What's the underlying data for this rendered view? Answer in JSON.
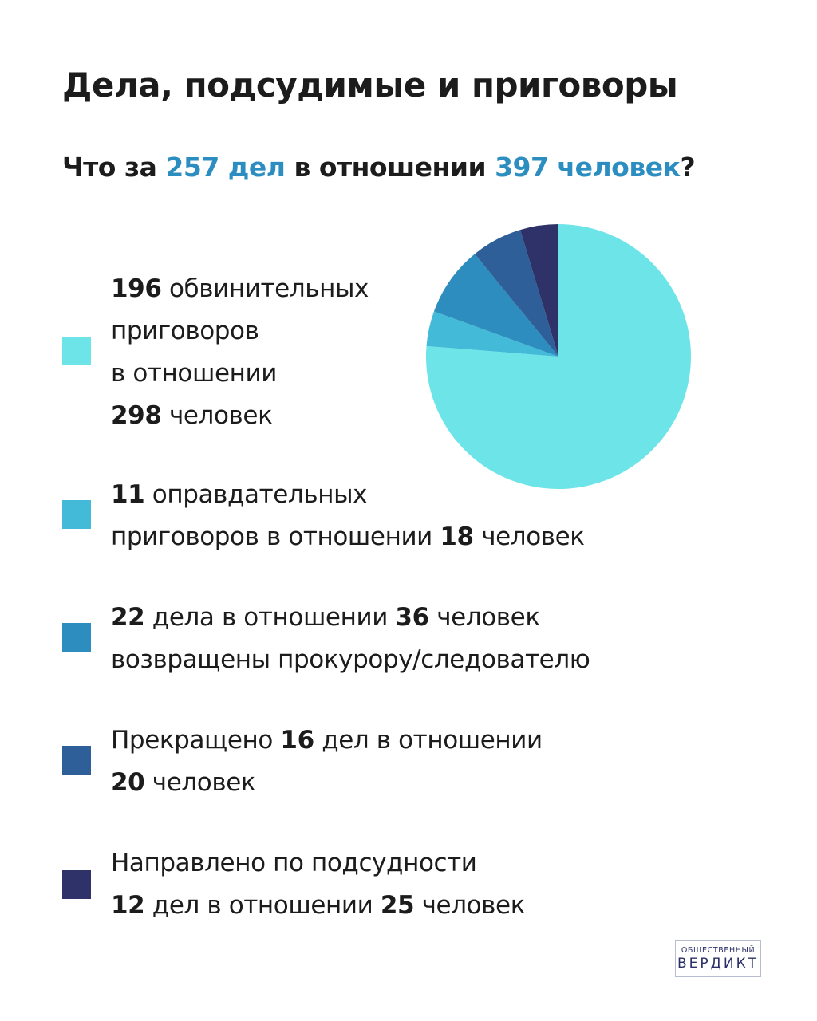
{
  "title": "Дела, подсудимые и приговоры",
  "subtitle": {
    "prefix": "Что за ",
    "cases": "257 дел",
    "middle": " в отношении ",
    "people": "397 человек",
    "suffix": "?"
  },
  "chart_data": {
    "type": "pie",
    "slices": [
      {
        "label": "обвинительных приговоров",
        "value": 196,
        "color": "#6ce4e8"
      },
      {
        "label": "оправдательных приговоров",
        "value": 11,
        "color": "#42bad8"
      },
      {
        "label": "возвращены прокурору/следователю",
        "value": 22,
        "color": "#2c8dbe"
      },
      {
        "label": "Прекращено",
        "value": 16,
        "color": "#2e5f98"
      },
      {
        "label": "Направлено по подсудности",
        "value": 12,
        "color": "#2f3268"
      }
    ]
  },
  "legend": [
    {
      "lines": [
        [
          {
            "b": "196"
          },
          {
            "t": " обвинительных"
          }
        ],
        [
          {
            "t": "приговоров"
          }
        ],
        [
          {
            "t": "в отношении"
          }
        ],
        [
          {
            "b": "298"
          },
          {
            "t": " человек"
          }
        ]
      ]
    },
    {
      "lines": [
        [
          {
            "b": "11"
          },
          {
            "t": " оправдательных"
          }
        ],
        [
          {
            "t": "приговоров в отношении "
          },
          {
            "b": "18"
          },
          {
            "t": " человек"
          }
        ]
      ]
    },
    {
      "lines": [
        [
          {
            "b": "22"
          },
          {
            "t": " дела в отношении "
          },
          {
            "b": "36"
          },
          {
            "t": " человек"
          }
        ],
        [
          {
            "t": "возвращены прокурору/следователю"
          }
        ]
      ]
    },
    {
      "lines": [
        [
          {
            "t": "Прекращено "
          },
          {
            "b": "16"
          },
          {
            "t": " дел в отношении"
          }
        ],
        [
          {
            "b": "20"
          },
          {
            "t": " человек"
          }
        ]
      ]
    },
    {
      "lines": [
        [
          {
            "t": "Направлено по подсудности"
          }
        ],
        [
          {
            "b": "12"
          },
          {
            "t": " дел в отношении "
          },
          {
            "b": "25"
          },
          {
            "t": " человек"
          }
        ]
      ]
    }
  ],
  "logo": {
    "top": "ОБЩЕСТВЕННЫЙ",
    "bottom": "ВЕРДИКТ"
  }
}
